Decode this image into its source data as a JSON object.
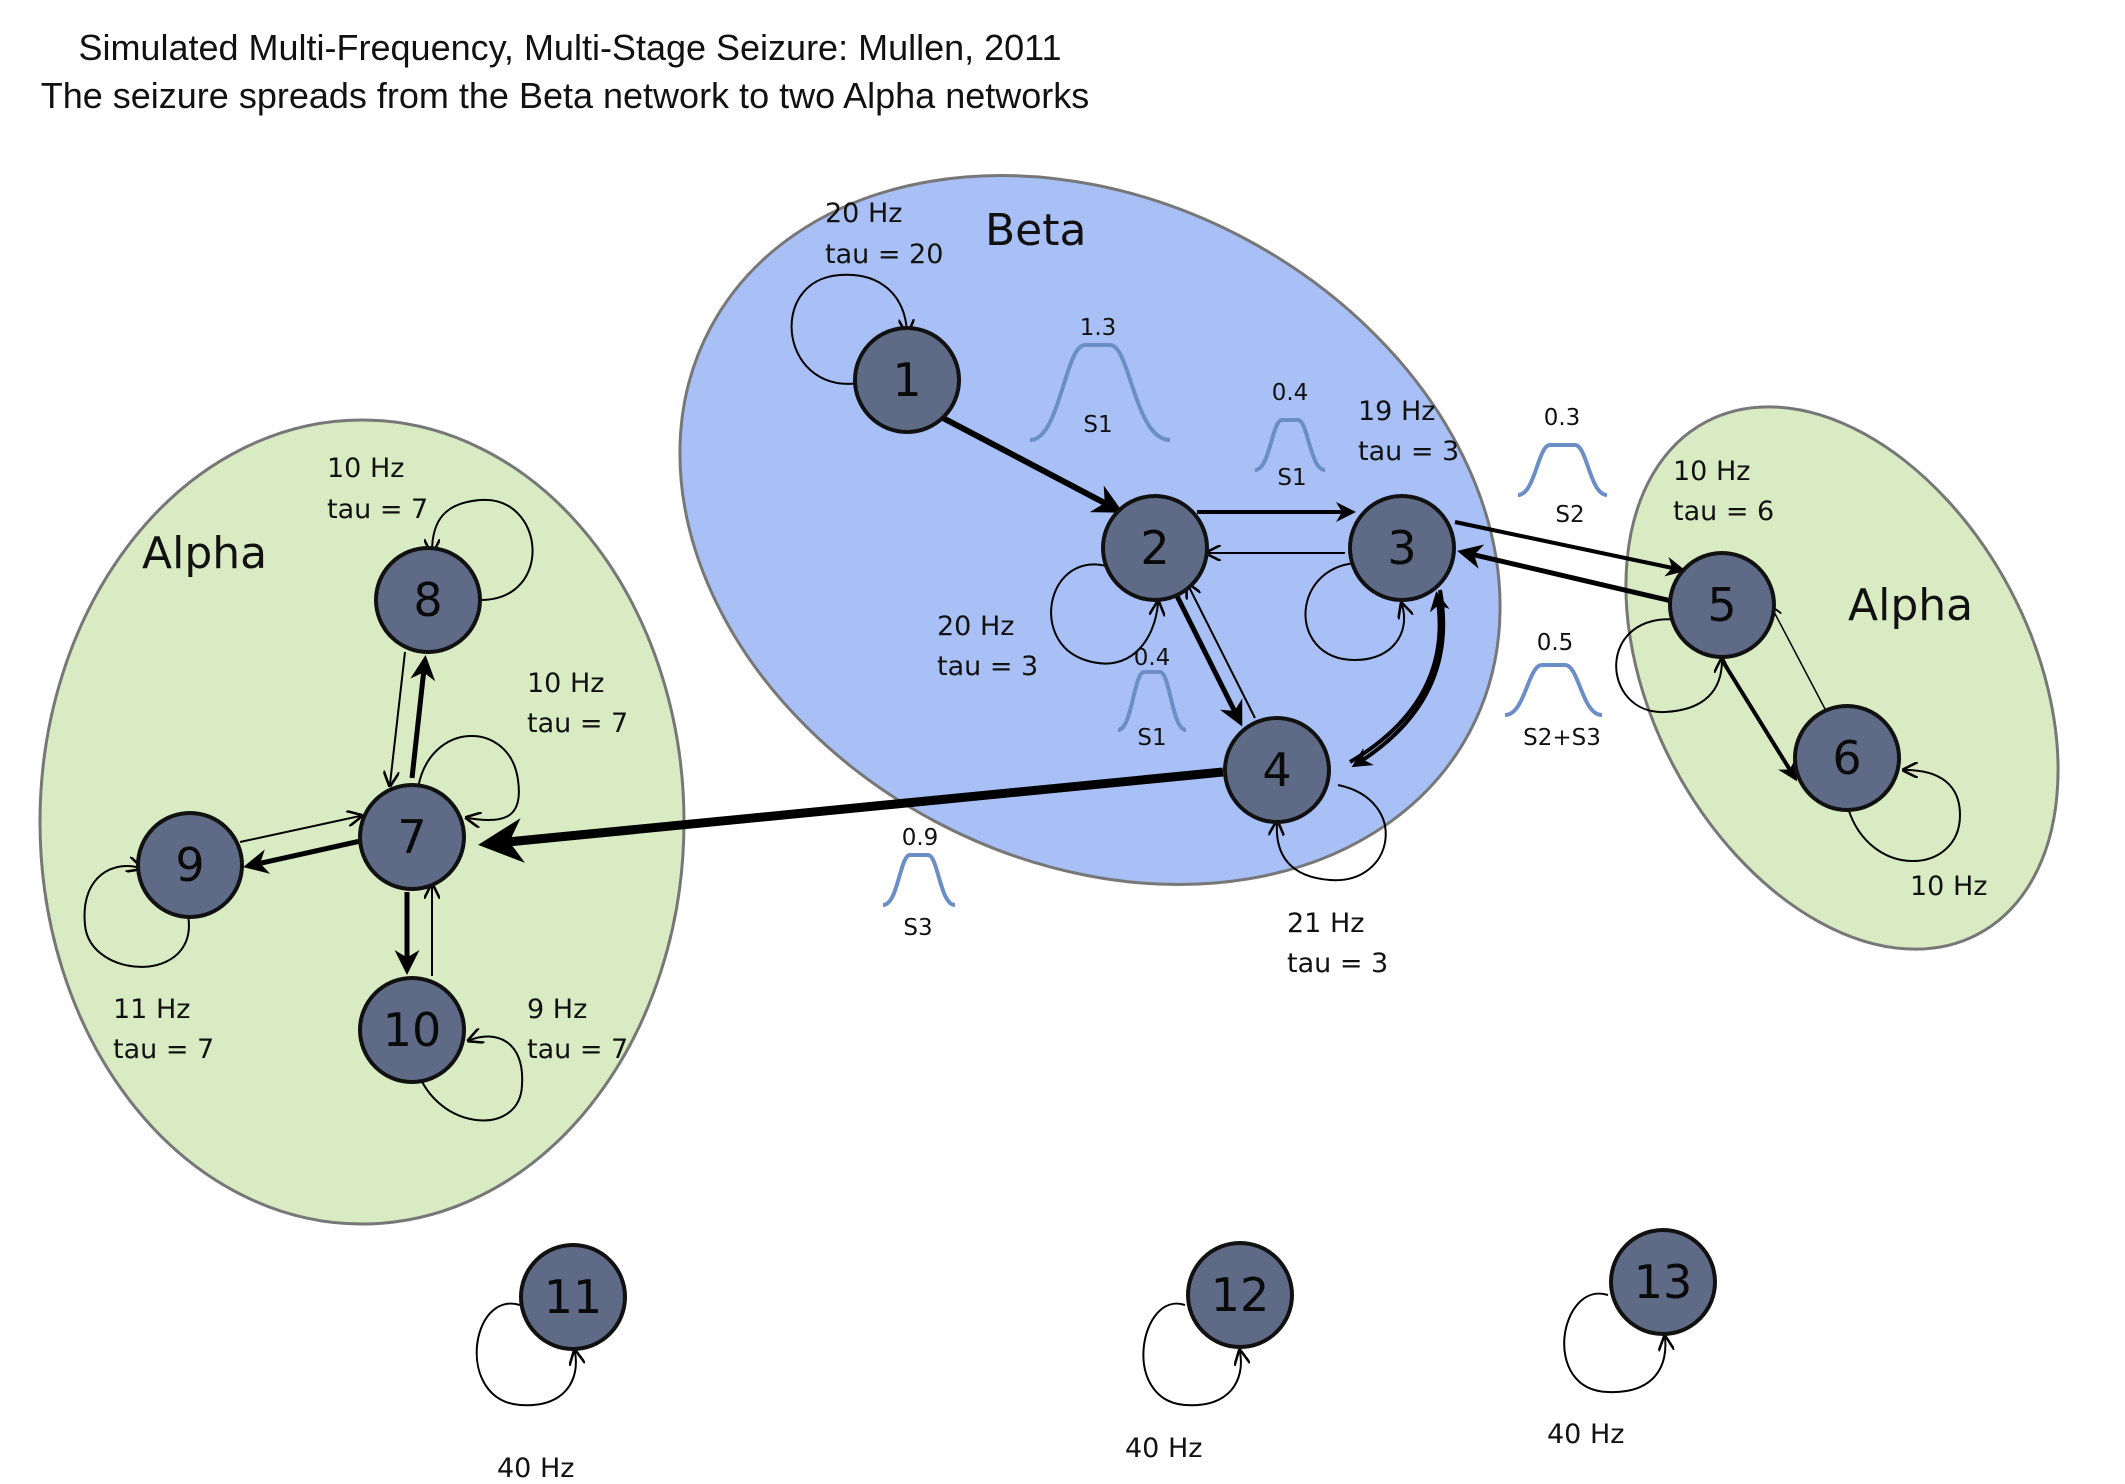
{
  "title": {
    "line1": "Simulated Multi-Frequency, Multi-Stage Seizure: Mullen, 2011",
    "line2": "The seizure spreads from the Beta network to two Alpha networks"
  },
  "regions": {
    "beta": "Beta",
    "alpha_left": "Alpha",
    "alpha_right": "Alpha"
  },
  "colors": {
    "beta_fill": "#a8c0f6",
    "alpha_fill": "#d9ebc3",
    "node_fill": "#5f6b86",
    "stimulus": "#6b8ec6"
  },
  "nodes": [
    "1",
    "2",
    "3",
    "4",
    "5",
    "6",
    "7",
    "8",
    "9",
    "10",
    "11",
    "12",
    "13"
  ],
  "params": {
    "n1_freq": "20 Hz",
    "n1_tau": "tau = 20",
    "n3_freq": "19 Hz",
    "n3_tau": "tau = 3",
    "n2_freq": "20 Hz",
    "n2_tau": "tau = 3",
    "n4_freq": "21 Hz",
    "n4_tau": "tau = 3",
    "n5_freq": "10 Hz",
    "n5_tau": "tau = 6",
    "n6_freq": "10 Hz",
    "n8_freq": "10 Hz",
    "n8_tau": "tau = 7",
    "n7_freq": "10 Hz",
    "n7_tau": "tau = 7",
    "n9_freq": "11 Hz",
    "n9_tau": "tau = 7",
    "n10_freq": "9 Hz",
    "n10_tau": "tau = 7",
    "n11_freq": "40 Hz",
    "n12_freq": "40 Hz",
    "n13_freq": "40 Hz"
  },
  "stimuli": {
    "s_12": {
      "value": "1.3",
      "label": "S1"
    },
    "s_23": {
      "value": "0.4",
      "label": "S1"
    },
    "s_24": {
      "value": "0.4",
      "label": "S1"
    },
    "s_35": {
      "value": "0.3",
      "label": "S2"
    },
    "s_53": {
      "value": "0.5",
      "label": "S2+S3"
    },
    "s_47": {
      "value": "0.9",
      "label": "S3"
    }
  }
}
